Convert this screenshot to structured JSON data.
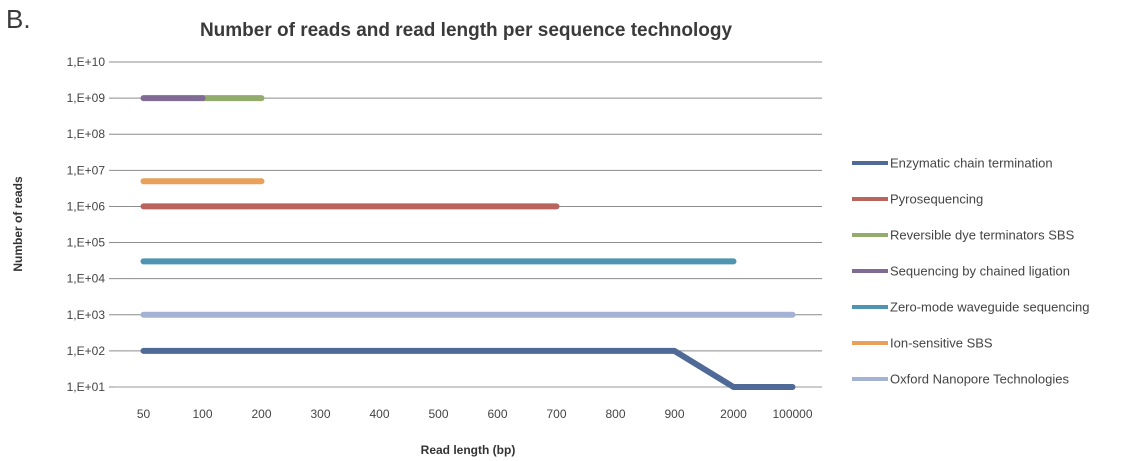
{
  "panel_label": "B.",
  "chart_data": {
    "type": "line",
    "title": "Number of reads and read length per sequence technology",
    "xlabel": "Read length (bp)",
    "ylabel": "Number of reads",
    "x_scale": "categorical",
    "categories": [
      "50",
      "100",
      "200",
      "300",
      "400",
      "500",
      "600",
      "700",
      "800",
      "900",
      "2000",
      "100000"
    ],
    "y_scale": "log10",
    "y_ticks": [
      "1,E+01",
      "1,E+02",
      "1,E+03",
      "1,E+04",
      "1,E+05",
      "1,E+06",
      "1,E+07",
      "1,E+08",
      "1,E+09",
      "1,E+10"
    ],
    "ylim": [
      10,
      10000000000
    ],
    "grid": "horizontal",
    "legend": "right",
    "series": [
      {
        "name": "Enzymatic chain termination",
        "color": "#4f6a96",
        "points": [
          [
            "50",
            100
          ],
          [
            "900",
            100
          ],
          [
            "2000",
            10
          ],
          [
            "100000",
            10
          ]
        ]
      },
      {
        "name": "Pyrosequencing",
        "color": "#b9645d",
        "points": [
          [
            "50",
            1000000
          ],
          [
            "700",
            1000000
          ]
        ]
      },
      {
        "name": "Reversible dye terminators SBS",
        "color": "#93ab6c",
        "points": [
          [
            "100",
            1000000000
          ],
          [
            "200",
            1000000000
          ]
        ]
      },
      {
        "name": "Sequencing by chained ligation",
        "color": "#7f6b93",
        "points": [
          [
            "50",
            1000000000
          ],
          [
            "100",
            1000000000
          ]
        ]
      },
      {
        "name": "Zero-mode waveguide sequencing",
        "color": "#4f95b1",
        "points": [
          [
            "50",
            30000
          ],
          [
            "2000",
            30000
          ]
        ]
      },
      {
        "name": "Ion-sensitive SBS",
        "color": "#e9a05a",
        "points": [
          [
            "50",
            5000000
          ],
          [
            "200",
            5000000
          ]
        ]
      },
      {
        "name": "Oxford Nanopore Technologies",
        "color": "#a4b3d4",
        "points": [
          [
            "50",
            1000
          ],
          [
            "100000",
            1000
          ]
        ]
      }
    ]
  }
}
